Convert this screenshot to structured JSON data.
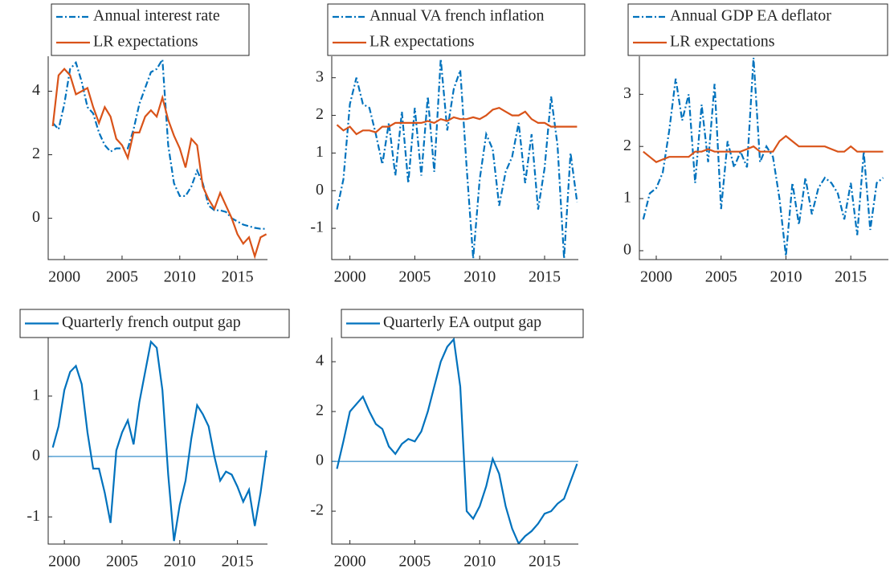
{
  "chart_data": [
    {
      "type": "line",
      "xlim": [
        1998.6,
        2017.6
      ],
      "xticks": [
        2000,
        2005,
        2010,
        2015
      ],
      "ylim": [
        -1.3,
        5.1
      ],
      "yticks": [
        0,
        2,
        4
      ],
      "x": [
        1999,
        1999.5,
        2000,
        2000.5,
        2001,
        2001.5,
        2002,
        2002.5,
        2003,
        2003.5,
        2004,
        2004.5,
        2005,
        2005.5,
        2006,
        2006.5,
        2007,
        2007.5,
        2008,
        2008.5,
        2009,
        2009.5,
        2010,
        2010.5,
        2011,
        2011.5,
        2012,
        2012.5,
        2013,
        2013.5,
        2014,
        2014.5,
        2015,
        2015.5,
        2016,
        2016.5,
        2017,
        2017.5
      ],
      "series": [
        {
          "name": "Annual interest rate",
          "color": "#0072BD",
          "linestyle": "dashdot",
          "values": [
            3.0,
            2.8,
            3.6,
            4.7,
            4.9,
            4.3,
            3.5,
            3.3,
            2.7,
            2.3,
            2.1,
            2.2,
            2.2,
            2.2,
            2.8,
            3.6,
            4.1,
            4.6,
            4.7,
            5.0,
            2.3,
            1.1,
            0.7,
            0.7,
            1.0,
            1.5,
            1.1,
            0.4,
            0.25,
            0.25,
            0.2,
            0.0,
            -0.1,
            -0.2,
            -0.25,
            -0.3,
            -0.33,
            -0.33
          ]
        },
        {
          "name": "LR expectations",
          "color": "#D95319",
          "linestyle": "solid",
          "values": [
            2.9,
            4.5,
            4.7,
            4.5,
            3.9,
            4.0,
            4.1,
            3.5,
            3.0,
            3.5,
            3.2,
            2.5,
            2.3,
            1.9,
            2.7,
            2.7,
            3.2,
            3.4,
            3.2,
            3.8,
            3.1,
            2.6,
            2.2,
            1.6,
            2.5,
            2.3,
            1.0,
            0.6,
            0.3,
            0.8,
            0.4,
            0.0,
            -0.5,
            -0.8,
            -0.6,
            -1.2,
            -0.6,
            -0.5
          ]
        }
      ]
    },
    {
      "type": "line",
      "xlim": [
        1998.6,
        2017.6
      ],
      "xticks": [
        2000,
        2005,
        2010,
        2015
      ],
      "ylim": [
        -1.83,
        3.57
      ],
      "yticks": [
        -1,
        0,
        1,
        2,
        3
      ],
      "x": [
        1999,
        1999.5,
        2000,
        2000.5,
        2001,
        2001.5,
        2002,
        2002.5,
        2003,
        2003.5,
        2004,
        2004.5,
        2005,
        2005.5,
        2006,
        2006.5,
        2007,
        2007.5,
        2008,
        2008.5,
        2009,
        2009.5,
        2010,
        2010.5,
        2011,
        2011.5,
        2012,
        2012.5,
        2013,
        2013.5,
        2014,
        2014.5,
        2015,
        2015.5,
        2016,
        2016.5,
        2017,
        2017.5
      ],
      "series": [
        {
          "name": "Annual VA french inflation",
          "color": "#0072BD",
          "linestyle": "dashdot",
          "values": [
            -0.5,
            0.3,
            2.3,
            3.0,
            2.3,
            2.2,
            1.5,
            0.7,
            1.8,
            0.4,
            2.1,
            0.2,
            2.2,
            0.4,
            2.5,
            0.5,
            3.5,
            1.6,
            2.7,
            3.2,
            0.6,
            -1.8,
            0.3,
            1.5,
            1.1,
            -0.4,
            0.5,
            0.9,
            1.8,
            0.2,
            1.5,
            -0.5,
            0.6,
            2.5,
            1.2,
            -1.8,
            1.0,
            -0.3
          ]
        },
        {
          "name": "LR expectations",
          "color": "#D95319",
          "linestyle": "solid",
          "values": [
            1.75,
            1.6,
            1.7,
            1.5,
            1.6,
            1.6,
            1.55,
            1.7,
            1.7,
            1.8,
            1.8,
            1.8,
            1.8,
            1.8,
            1.85,
            1.8,
            1.9,
            1.85,
            1.95,
            1.9,
            1.9,
            1.95,
            1.9,
            2.0,
            2.15,
            2.2,
            2.1,
            2.0,
            2.0,
            2.1,
            1.9,
            1.8,
            1.8,
            1.7,
            1.7,
            1.7,
            1.7,
            1.7
          ]
        }
      ]
    },
    {
      "type": "line",
      "xlim": [
        1998.7,
        2017.9
      ],
      "xticks": [
        2000,
        2005,
        2010,
        2015
      ],
      "ylim": [
        -0.17,
        3.73
      ],
      "yticks": [
        0,
        1,
        2,
        3
      ],
      "x": [
        1999,
        1999.5,
        2000,
        2000.5,
        2001,
        2001.5,
        2002,
        2002.5,
        2003,
        2003.5,
        2004,
        2004.5,
        2005,
        2005.5,
        2006,
        2006.5,
        2007,
        2007.5,
        2008,
        2008.5,
        2009,
        2009.5,
        2010,
        2010.5,
        2011,
        2011.5,
        2012,
        2012.5,
        2013,
        2013.5,
        2014,
        2014.5,
        2015,
        2015.5,
        2016,
        2016.5,
        2017,
        2017.5
      ],
      "series": [
        {
          "name": "Annual GDP EA deflator",
          "color": "#0072BD",
          "linestyle": "dashdot",
          "values": [
            0.6,
            1.1,
            1.2,
            1.5,
            2.3,
            3.3,
            2.5,
            3.0,
            1.3,
            2.8,
            1.7,
            3.2,
            0.8,
            2.1,
            1.6,
            1.9,
            1.6,
            3.7,
            1.7,
            2.0,
            1.8,
            1.0,
            -0.1,
            1.3,
            0.5,
            1.4,
            0.7,
            1.2,
            1.4,
            1.3,
            1.1,
            0.6,
            1.3,
            0.3,
            1.9,
            0.4,
            1.3,
            1.4
          ]
        },
        {
          "name": "LR expectations",
          "color": "#D95319",
          "linestyle": "solid",
          "values": [
            1.9,
            1.8,
            1.7,
            1.75,
            1.8,
            1.8,
            1.8,
            1.8,
            1.9,
            1.9,
            1.95,
            1.9,
            1.9,
            1.9,
            1.9,
            1.9,
            1.95,
            2.0,
            1.9,
            1.9,
            1.9,
            2.1,
            2.2,
            2.1,
            2.0,
            2.0,
            2.0,
            2.0,
            2.0,
            1.95,
            1.9,
            1.9,
            2.0,
            1.9,
            1.9,
            1.9,
            1.9,
            1.9
          ]
        }
      ]
    },
    {
      "type": "line",
      "xlim": [
        1998.6,
        2017.6
      ],
      "xticks": [
        2000,
        2005,
        2010,
        2015
      ],
      "ylim": [
        -1.45,
        1.97
      ],
      "yticks": [
        -1,
        0,
        1
      ],
      "reference_line": 0,
      "x": [
        1999,
        1999.5,
        2000,
        2000.5,
        2001,
        2001.5,
        2002,
        2002.5,
        2003,
        2003.5,
        2004,
        2004.5,
        2005,
        2005.5,
        2006,
        2006.5,
        2007,
        2007.5,
        2008,
        2008.5,
        2009,
        2009.5,
        2010,
        2010.5,
        2011,
        2011.5,
        2012,
        2012.5,
        2013,
        2013.5,
        2014,
        2014.5,
        2015,
        2015.5,
        2016,
        2016.5,
        2017,
        2017.5
      ],
      "series": [
        {
          "name": "Quarterly french output gap",
          "color": "#0072BD",
          "linestyle": "solid",
          "values": [
            0.15,
            0.5,
            1.1,
            1.4,
            1.5,
            1.2,
            0.4,
            -0.2,
            -0.2,
            -0.6,
            -1.1,
            0.1,
            0.4,
            0.6,
            0.2,
            0.9,
            1.4,
            1.9,
            1.8,
            1.1,
            -0.3,
            -1.4,
            -0.8,
            -0.4,
            0.3,
            0.85,
            0.7,
            0.5,
            0.0,
            -0.4,
            -0.25,
            -0.3,
            -0.5,
            -0.75,
            -0.55,
            -1.15,
            -0.6,
            0.1
          ]
        }
      ]
    },
    {
      "type": "line",
      "xlim": [
        1998.6,
        2017.6
      ],
      "xticks": [
        2000,
        2005,
        2010,
        2015
      ],
      "ylim": [
        -3.32,
        4.97
      ],
      "yticks": [
        -2,
        0,
        2,
        4
      ],
      "reference_line": 0,
      "x": [
        1999,
        1999.5,
        2000,
        2000.5,
        2001,
        2001.5,
        2002,
        2002.5,
        2003,
        2003.5,
        2004,
        2004.5,
        2005,
        2005.5,
        2006,
        2006.5,
        2007,
        2007.5,
        2008,
        2008.5,
        2009,
        2009.5,
        2010,
        2010.5,
        2011,
        2011.5,
        2012,
        2012.5,
        2013,
        2013.5,
        2014,
        2014.5,
        2015,
        2015.5,
        2016,
        2016.5,
        2017,
        2017.5
      ],
      "series": [
        {
          "name": "Quarterly EA output gap",
          "color": "#0072BD",
          "linestyle": "solid",
          "values": [
            -0.3,
            0.8,
            2.0,
            2.3,
            2.6,
            2.0,
            1.5,
            1.3,
            0.6,
            0.3,
            0.7,
            0.9,
            0.8,
            1.2,
            2.0,
            3.0,
            4.0,
            4.6,
            4.9,
            3.0,
            -2.0,
            -2.3,
            -1.8,
            -1.0,
            0.1,
            -0.5,
            -1.8,
            -2.7,
            -3.3,
            -3.0,
            -2.8,
            -2.5,
            -2.1,
            -2.0,
            -1.7,
            -1.5,
            -0.8,
            -0.1
          ]
        }
      ]
    }
  ]
}
